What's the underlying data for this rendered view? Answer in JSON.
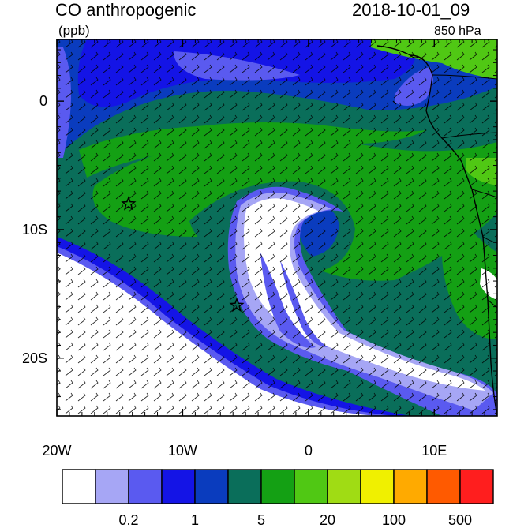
{
  "header": {
    "title": "CO anthropogenic",
    "units": "(ppb)",
    "datetime": "2018-10-01_09",
    "level": "850 hPa"
  },
  "axes": {
    "lat_labels": [
      {
        "label": "0",
        "lat": 0
      },
      {
        "label": "10S",
        "lat": -10
      },
      {
        "label": "20S",
        "lat": -20
      }
    ],
    "lon_labels": [
      {
        "label": "20W",
        "lon": -20
      },
      {
        "label": "10W",
        "lon": -10
      },
      {
        "label": "0",
        "lon": 0
      },
      {
        "label": "10E",
        "lon": 10
      }
    ],
    "lon_range": [
      -20,
      15
    ],
    "lat_range": [
      -24.5,
      4.8
    ]
  },
  "colorbar": {
    "colors": [
      "#ffffff",
      "#a6a6f5",
      "#5a5af0",
      "#1414e6",
      "#0a3cbe",
      "#0a6e5a",
      "#14a014",
      "#50c814",
      "#a0dc14",
      "#f0f000",
      "#ffaa00",
      "#ff5a00",
      "#ff1e1e"
    ],
    "labels": [
      {
        "label": "0.2",
        "after_box": 2
      },
      {
        "label": "1",
        "after_box": 4
      },
      {
        "label": "5",
        "after_box": 6
      },
      {
        "label": "20",
        "after_box": 8
      },
      {
        "label": "100",
        "after_box": 10
      },
      {
        "label": "500",
        "after_box": 12
      }
    ]
  },
  "markers": [
    {
      "name": "star-marker",
      "lon": -14.3,
      "lat": -8.0
    },
    {
      "name": "star-marker",
      "lon": -5.7,
      "lat": -15.9
    }
  ],
  "field_colors": {
    "white": "#ffffff",
    "light_blue": "#a6a6f5",
    "medium_blue": "#5a5af0",
    "blue": "#1414e6",
    "dark_blue": "#0a3cbe",
    "teal": "#0a6e5a",
    "green": "#14a014",
    "light_green": "#50c814"
  }
}
